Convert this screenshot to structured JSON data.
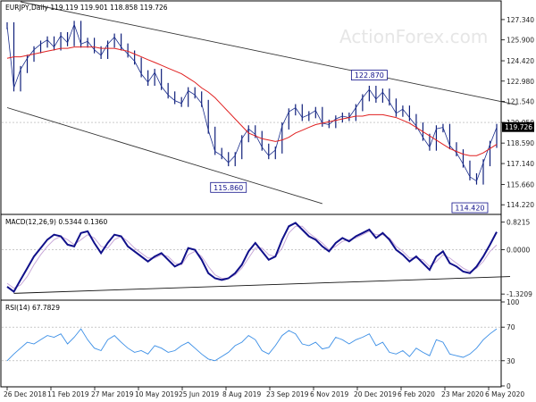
{
  "chart_data": {
    "type": "line",
    "watermark": "ActionForex.com",
    "x_labels": [
      "26 Dec 2018",
      "11 Feb 2019",
      "27 Mar 2019",
      "10 May 2019",
      "25 Jun 2019",
      "8 Aug 2019",
      "23 Sep 2019",
      "6 Nov 2019",
      "20 Dec 2019",
      "6 Feb 2020",
      "23 Mar 2020",
      "6 May 2020"
    ],
    "price": {
      "title": "EURJPY,Daily  119.119 119.901 118.858 119.726",
      "ticks": [
        "127.340",
        "125.900",
        "124.420",
        "122.980",
        "121.540",
        "120.050",
        "118.590",
        "117.140",
        "115.660",
        "114.220"
      ],
      "tick_values": [
        127.34,
        125.9,
        124.42,
        122.98,
        121.54,
        120.05,
        118.59,
        117.14,
        115.66,
        114.22
      ],
      "ylim": [
        113.6,
        128.6
      ],
      "current_value": "119.726",
      "annotations": [
        {
          "text": "122.870",
          "x": 54,
          "value": 122.87
        },
        {
          "text": "115.860",
          "x": 33,
          "value": 115.86
        },
        {
          "text": "114.420",
          "x": 69,
          "value": 114.42
        }
      ],
      "close": [
        126.9,
        122.5,
        123.8,
        124.6,
        125.2,
        125.6,
        125.9,
        125.4,
        126.2,
        125.7,
        127.0,
        125.6,
        125.8,
        125.2,
        124.8,
        125.6,
        126.1,
        125.4,
        124.9,
        124.4,
        123.5,
        122.9,
        123.6,
        122.6,
        122.0,
        121.6,
        121.4,
        122.3,
        122.0,
        121.4,
        119.5,
        118.0,
        117.7,
        117.2,
        117.7,
        118.9,
        119.6,
        119.2,
        118.3,
        117.7,
        118.1,
        119.8,
        120.8,
        121.1,
        120.4,
        120.6,
        120.9,
        120.0,
        119.9,
        120.3,
        120.5,
        120.4,
        121.1,
        121.8,
        122.4,
        121.7,
        122.2,
        121.5,
        120.7,
        121.0,
        120.4,
        119.8,
        119.0,
        118.3,
        119.6,
        119.7,
        118.4,
        117.9,
        117.1,
        116.2,
        115.9,
        117.2,
        118.5,
        119.7
      ],
      "ma": [
        124.6,
        124.7,
        124.7,
        124.8,
        124.9,
        125.0,
        125.1,
        125.2,
        125.3,
        125.3,
        125.4,
        125.4,
        125.4,
        125.4,
        125.3,
        125.3,
        125.3,
        125.2,
        125.1,
        124.9,
        124.7,
        124.5,
        124.3,
        124.1,
        123.9,
        123.7,
        123.5,
        123.2,
        122.9,
        122.5,
        122.2,
        121.8,
        121.3,
        120.8,
        120.3,
        119.8,
        119.3,
        119.1,
        118.9,
        118.8,
        118.7,
        118.8,
        119.0,
        119.3,
        119.5,
        119.7,
        119.9,
        120.0,
        120.1,
        120.2,
        120.3,
        120.4,
        120.5,
        120.5,
        120.6,
        120.6,
        120.6,
        120.5,
        120.4,
        120.2,
        120.0,
        119.7,
        119.4,
        119.1,
        118.8,
        118.5,
        118.2,
        118.0,
        117.8,
        117.7,
        117.7,
        117.9,
        118.2,
        118.5
      ],
      "channel": [
        {
          "x": [
            2,
            76
          ],
          "value": [
            128.6,
            121.3
          ]
        },
        {
          "x": [
            0,
            47
          ],
          "value": [
            121.1,
            114.3
          ]
        }
      ]
    },
    "macd": {
      "title": "MACD(12,26,9) 0.5344 0.1360",
      "ticks": [
        "0.8215",
        "0.0000",
        "-1.3209"
      ],
      "tick_values": [
        0.8215,
        0,
        -1.3209
      ],
      "ylim": [
        -1.45,
        1.0
      ],
      "macd": [
        -1.1,
        -1.25,
        -0.9,
        -0.55,
        -0.2,
        0.05,
        0.3,
        0.45,
        0.4,
        0.15,
        0.1,
        0.5,
        0.55,
        0.2,
        -0.1,
        0.2,
        0.45,
        0.4,
        0.1,
        -0.05,
        -0.2,
        -0.35,
        -0.2,
        -0.1,
        -0.3,
        -0.5,
        -0.4,
        0.05,
        0.0,
        -0.3,
        -0.7,
        -0.85,
        -0.9,
        -0.85,
        -0.7,
        -0.45,
        -0.05,
        0.2,
        -0.05,
        -0.3,
        -0.2,
        0.3,
        0.7,
        0.8,
        0.6,
        0.4,
        0.3,
        0.1,
        -0.05,
        0.2,
        0.35,
        0.25,
        0.4,
        0.5,
        0.6,
        0.35,
        0.5,
        0.3,
        0.0,
        -0.15,
        -0.35,
        -0.2,
        -0.4,
        -0.6,
        -0.2,
        -0.05,
        -0.4,
        -0.5,
        -0.65,
        -0.7,
        -0.5,
        -0.2,
        0.15,
        0.53
      ],
      "signal": [
        -1.0,
        -1.15,
        -1.05,
        -0.8,
        -0.45,
        -0.15,
        0.1,
        0.3,
        0.4,
        0.3,
        0.15,
        0.3,
        0.45,
        0.35,
        0.1,
        0.05,
        0.3,
        0.4,
        0.25,
        0.05,
        -0.1,
        -0.25,
        -0.25,
        -0.15,
        -0.2,
        -0.4,
        -0.45,
        -0.15,
        -0.05,
        -0.2,
        -0.5,
        -0.75,
        -0.85,
        -0.85,
        -0.75,
        -0.55,
        -0.25,
        0.05,
        0.05,
        -0.15,
        -0.2,
        0.05,
        0.5,
        0.7,
        0.7,
        0.5,
        0.35,
        0.2,
        0.0,
        0.1,
        0.25,
        0.3,
        0.35,
        0.45,
        0.55,
        0.45,
        0.45,
        0.35,
        0.1,
        -0.05,
        -0.25,
        -0.25,
        -0.3,
        -0.5,
        -0.35,
        -0.15,
        -0.25,
        -0.4,
        -0.55,
        -0.65,
        -0.55,
        -0.35,
        -0.05,
        0.14
      ],
      "trendline": {
        "x": [
          1,
          75
        ],
        "value": [
          -1.3,
          -0.8
        ]
      }
    },
    "rsi": {
      "title": "RSI(14) 67.7829",
      "ticks": [
        "100",
        "70",
        "30",
        "0"
      ],
      "tick_values": [
        100,
        70,
        30,
        0
      ],
      "ylim": [
        0,
        100
      ],
      "values": [
        30,
        38,
        45,
        52,
        50,
        55,
        60,
        58,
        62,
        50,
        58,
        68,
        55,
        45,
        42,
        55,
        60,
        52,
        45,
        40,
        42,
        38,
        48,
        45,
        40,
        42,
        48,
        52,
        45,
        38,
        32,
        30,
        35,
        40,
        48,
        52,
        60,
        55,
        42,
        38,
        48,
        60,
        66,
        62,
        50,
        48,
        52,
        44,
        46,
        58,
        55,
        50,
        55,
        58,
        62,
        48,
        52,
        40,
        38,
        42,
        35,
        45,
        40,
        36,
        55,
        52,
        38,
        36,
        34,
        38,
        45,
        55,
        62,
        68
      ]
    }
  }
}
